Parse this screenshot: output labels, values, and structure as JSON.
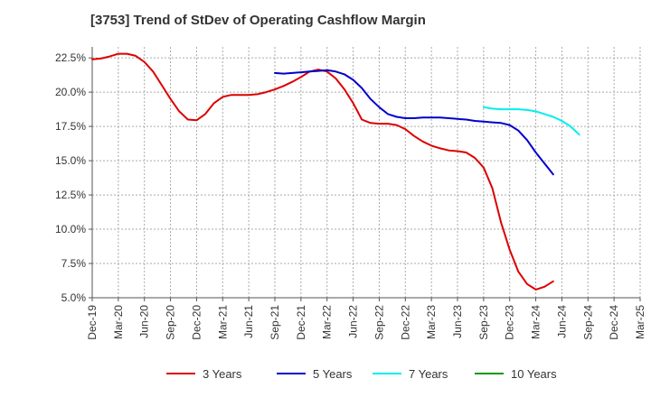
{
  "chart_data": {
    "type": "line",
    "title": "[3753]  Trend of StDev of Operating Cashflow Margin",
    "xlabel": "",
    "ylabel": "",
    "x_tick_labels": [
      "Dec-19",
      "Mar-20",
      "Jun-20",
      "Sep-20",
      "Dec-20",
      "Mar-21",
      "Jun-21",
      "Sep-21",
      "Dec-21",
      "Mar-22",
      "Jun-22",
      "Sep-22",
      "Dec-22",
      "Mar-23",
      "Jun-23",
      "Sep-23",
      "Dec-23",
      "Mar-24",
      "Jun-24",
      "Sep-24",
      "Dec-24",
      "Mar-25"
    ],
    "y_tick_labels": [
      "5.0%",
      "7.5%",
      "10.0%",
      "12.5%",
      "15.0%",
      "17.5%",
      "20.0%",
      "22.5%"
    ],
    "y_ticks": [
      5.0,
      7.5,
      10.0,
      12.5,
      15.0,
      17.5,
      20.0,
      22.5
    ],
    "ylim": [
      5.0,
      23.3
    ],
    "x_range_months": [
      0,
      63
    ],
    "grid": true,
    "legend_position": "bottom",
    "series": [
      {
        "name": "3 Years",
        "color": "#dd0000",
        "points": [
          [
            0,
            22.4
          ],
          [
            1,
            22.45
          ],
          [
            2,
            22.6
          ],
          [
            3,
            22.8
          ],
          [
            4,
            22.8
          ],
          [
            5,
            22.65
          ],
          [
            6,
            22.2
          ],
          [
            7,
            21.5
          ],
          [
            8,
            20.5
          ],
          [
            9,
            19.5
          ],
          [
            10,
            18.6
          ],
          [
            11,
            18.0
          ],
          [
            12,
            17.95
          ],
          [
            13,
            18.4
          ],
          [
            14,
            19.2
          ],
          [
            15,
            19.65
          ],
          [
            16,
            19.8
          ],
          [
            17,
            19.8
          ],
          [
            18,
            19.8
          ],
          [
            19,
            19.85
          ],
          [
            20,
            20.0
          ],
          [
            21,
            20.2
          ],
          [
            22,
            20.45
          ],
          [
            23,
            20.75
          ],
          [
            24,
            21.1
          ],
          [
            25,
            21.5
          ],
          [
            26,
            21.65
          ],
          [
            27,
            21.5
          ],
          [
            28,
            21.0
          ],
          [
            29,
            20.2
          ],
          [
            30,
            19.2
          ],
          [
            31,
            18.0
          ],
          [
            32,
            17.75
          ],
          [
            33,
            17.7
          ],
          [
            34,
            17.7
          ],
          [
            35,
            17.6
          ],
          [
            36,
            17.3
          ],
          [
            37,
            16.8
          ],
          [
            38,
            16.4
          ],
          [
            39,
            16.1
          ],
          [
            40,
            15.9
          ],
          [
            41,
            15.75
          ],
          [
            42,
            15.7
          ],
          [
            43,
            15.6
          ],
          [
            44,
            15.2
          ],
          [
            45,
            14.5
          ],
          [
            46,
            13.0
          ],
          [
            47,
            10.5
          ],
          [
            48,
            8.5
          ],
          [
            49,
            6.9
          ],
          [
            50,
            6.0
          ],
          [
            51,
            5.6
          ],
          [
            52,
            5.8
          ],
          [
            53,
            6.2
          ]
        ]
      },
      {
        "name": "5 Years",
        "color": "#0000cc",
        "points": [
          [
            21,
            21.4
          ],
          [
            22,
            21.35
          ],
          [
            23,
            21.4
          ],
          [
            24,
            21.45
          ],
          [
            25,
            21.5
          ],
          [
            26,
            21.55
          ],
          [
            27,
            21.6
          ],
          [
            28,
            21.5
          ],
          [
            29,
            21.3
          ],
          [
            30,
            20.9
          ],
          [
            31,
            20.3
          ],
          [
            32,
            19.5
          ],
          [
            33,
            18.9
          ],
          [
            34,
            18.4
          ],
          [
            35,
            18.2
          ],
          [
            36,
            18.1
          ],
          [
            37,
            18.1
          ],
          [
            38,
            18.15
          ],
          [
            39,
            18.15
          ],
          [
            40,
            18.15
          ],
          [
            41,
            18.1
          ],
          [
            42,
            18.05
          ],
          [
            43,
            18.0
          ],
          [
            44,
            17.9
          ],
          [
            45,
            17.85
          ],
          [
            46,
            17.8
          ],
          [
            47,
            17.75
          ],
          [
            48,
            17.6
          ],
          [
            49,
            17.2
          ],
          [
            50,
            16.5
          ],
          [
            51,
            15.6
          ],
          [
            52,
            14.8
          ],
          [
            53,
            14.0
          ]
        ]
      },
      {
        "name": "7 Years",
        "color": "#00eeee",
        "points": [
          [
            45,
            18.9
          ],
          [
            46,
            18.8
          ],
          [
            47,
            18.75
          ],
          [
            48,
            18.75
          ],
          [
            49,
            18.75
          ],
          [
            50,
            18.7
          ],
          [
            51,
            18.6
          ],
          [
            52,
            18.4
          ],
          [
            53,
            18.2
          ],
          [
            54,
            17.9
          ],
          [
            55,
            17.5
          ],
          [
            56,
            16.9
          ]
        ]
      },
      {
        "name": "10 Years",
        "color": "#009900",
        "points": []
      }
    ]
  }
}
